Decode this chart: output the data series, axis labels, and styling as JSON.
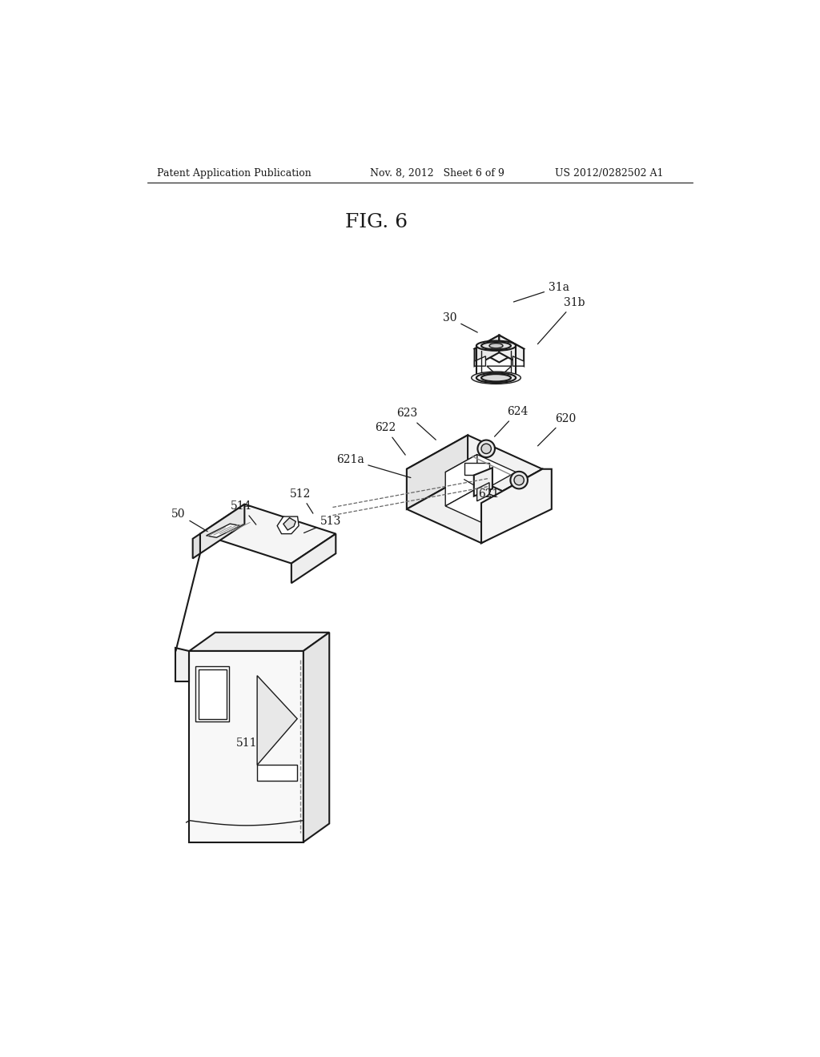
{
  "background_color": "#ffffff",
  "header_left": "Patent Application Publication",
  "header_center": "Nov. 8, 2012   Sheet 6 of 9",
  "header_right": "US 2012/0282502 A1",
  "figure_title": "FIG. 6",
  "line_color": "#1a1a1a",
  "text_color": "#1a1a1a",
  "label_fontsize": 10,
  "header_fontsize": 9,
  "title_fontsize": 18
}
